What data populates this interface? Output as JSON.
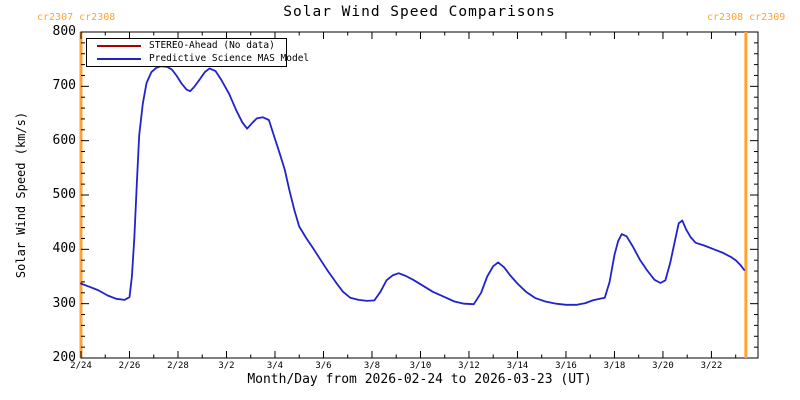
{
  "title": "Solar Wind Speed Comparisons",
  "annotations": {
    "top_left": "cr2307 cr2308",
    "top_right": "cr2308 cr2309"
  },
  "legend": {
    "entries": [
      {
        "label": "STEREO-Ahead (No data)",
        "color": "#aa0000"
      },
      {
        "label": "Predictive Science MAS Model",
        "color": "#2222cc"
      }
    ]
  },
  "colors": {
    "model_line": "#2222cc",
    "stereo_line": "#aa0000",
    "carrington_boundary": "#ffa333",
    "axis": "#000000",
    "background": "#ffffff"
  },
  "chart_data": {
    "type": "line",
    "title": "Solar Wind Speed Comparisons",
    "xlabel": "Month/Day from 2026-02-24 to 2026-03-23 (UT)",
    "ylabel": "Solar Wind Speed (km/s)",
    "x_epoch": "2026-02-24T00:00Z",
    "x_unit": "days since epoch",
    "xlim": [
      0,
      27.92
    ],
    "ylim": [
      200,
      800
    ],
    "grid": false,
    "legend_position": "top-left-inside",
    "x_major_tick_days": [
      0,
      2,
      4,
      6,
      8,
      10,
      12,
      14,
      16,
      18,
      20,
      22,
      24,
      26
    ],
    "x_minor_tick_days": [
      1,
      3,
      5,
      7,
      9,
      11,
      13,
      15,
      17,
      19,
      21,
      23,
      25,
      27
    ],
    "x_tick_labels": [
      "2/24",
      "2/26",
      "2/28",
      "3/2",
      "3/4",
      "3/6",
      "3/8",
      "3/10",
      "3/12",
      "3/14",
      "3/16",
      "3/18",
      "3/20",
      "3/22"
    ],
    "y_major_ticks": [
      200,
      300,
      400,
      500,
      600,
      700,
      800
    ],
    "y_minor_tick_step": 20,
    "carrington_boundary_days": [
      0,
      27.42
    ],
    "series": [
      {
        "name": "STEREO-Ahead (No data)",
        "color": "#aa0000",
        "points": []
      },
      {
        "name": "Predictive Science MAS Model",
        "color": "#2222cc",
        "points": [
          [
            0,
            337
          ],
          [
            0.35,
            331
          ],
          [
            0.7,
            325
          ],
          [
            1.1,
            315
          ],
          [
            1.45,
            309
          ],
          [
            1.8,
            307
          ],
          [
            2.0,
            312
          ],
          [
            2.1,
            350
          ],
          [
            2.2,
            420
          ],
          [
            2.3,
            520
          ],
          [
            2.4,
            610
          ],
          [
            2.55,
            668
          ],
          [
            2.7,
            706
          ],
          [
            2.9,
            726
          ],
          [
            3.1,
            734
          ],
          [
            3.3,
            737
          ],
          [
            3.55,
            736
          ],
          [
            3.75,
            731
          ],
          [
            3.95,
            719
          ],
          [
            4.15,
            705
          ],
          [
            4.35,
            694
          ],
          [
            4.5,
            691
          ],
          [
            4.65,
            698
          ],
          [
            4.9,
            713
          ],
          [
            5.1,
            726
          ],
          [
            5.3,
            733
          ],
          [
            5.55,
            728
          ],
          [
            5.8,
            711
          ],
          [
            6.1,
            687
          ],
          [
            6.4,
            656
          ],
          [
            6.65,
            634
          ],
          [
            6.85,
            622
          ],
          [
            7.05,
            632
          ],
          [
            7.25,
            641
          ],
          [
            7.5,
            643
          ],
          [
            7.75,
            638
          ],
          [
            8.0,
            603
          ],
          [
            8.2,
            576
          ],
          [
            8.4,
            547
          ],
          [
            8.6,
            508
          ],
          [
            8.8,
            472
          ],
          [
            9.0,
            442
          ],
          [
            9.3,
            420
          ],
          [
            9.6,
            400
          ],
          [
            9.9,
            379
          ],
          [
            10.2,
            359
          ],
          [
            10.5,
            340
          ],
          [
            10.8,
            322
          ],
          [
            11.1,
            311
          ],
          [
            11.45,
            307
          ],
          [
            11.8,
            305
          ],
          [
            12.1,
            306
          ],
          [
            12.35,
            322
          ],
          [
            12.6,
            343
          ],
          [
            12.85,
            352
          ],
          [
            13.1,
            356
          ],
          [
            13.4,
            351
          ],
          [
            13.7,
            344
          ],
          [
            14.1,
            333
          ],
          [
            14.5,
            322
          ],
          [
            14.95,
            313
          ],
          [
            15.4,
            304
          ],
          [
            15.8,
            300
          ],
          [
            16.2,
            299
          ],
          [
            16.5,
            320
          ],
          [
            16.75,
            350
          ],
          [
            17.0,
            369
          ],
          [
            17.2,
            376
          ],
          [
            17.45,
            367
          ],
          [
            17.7,
            352
          ],
          [
            18.0,
            337
          ],
          [
            18.35,
            322
          ],
          [
            18.75,
            310
          ],
          [
            19.15,
            304
          ],
          [
            19.6,
            300
          ],
          [
            20.0,
            298
          ],
          [
            20.45,
            298
          ],
          [
            20.8,
            301
          ],
          [
            21.1,
            306
          ],
          [
            21.4,
            309
          ],
          [
            21.6,
            311
          ],
          [
            21.8,
            340
          ],
          [
            22.0,
            390
          ],
          [
            22.15,
            415
          ],
          [
            22.3,
            428
          ],
          [
            22.5,
            424
          ],
          [
            22.75,
            406
          ],
          [
            23.05,
            381
          ],
          [
            23.35,
            361
          ],
          [
            23.65,
            344
          ],
          [
            23.9,
            338
          ],
          [
            24.1,
            343
          ],
          [
            24.3,
            375
          ],
          [
            24.5,
            417
          ],
          [
            24.65,
            448
          ],
          [
            24.8,
            453
          ],
          [
            24.95,
            437
          ],
          [
            25.15,
            422
          ],
          [
            25.35,
            412
          ],
          [
            25.7,
            407
          ],
          [
            26.1,
            400
          ],
          [
            26.45,
            394
          ],
          [
            26.8,
            386
          ],
          [
            27.0,
            380
          ],
          [
            27.2,
            371
          ],
          [
            27.35,
            362
          ]
        ]
      }
    ]
  }
}
